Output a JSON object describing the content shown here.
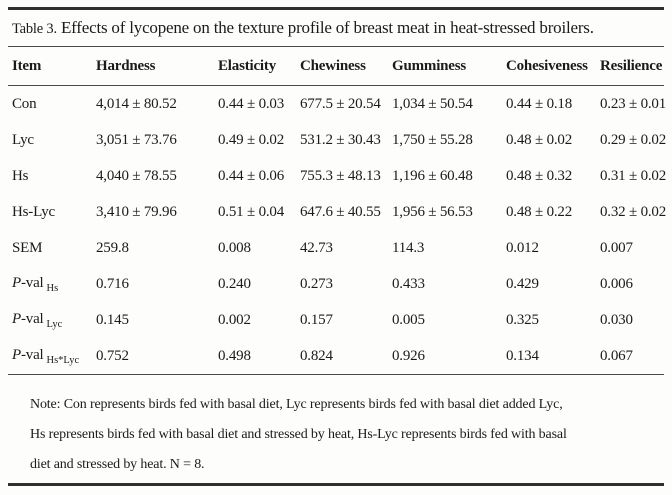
{
  "caption": {
    "label": "Table 3.",
    "text": " Effects of lycopene on the texture profile of breast meat in heat-stressed broilers."
  },
  "table": {
    "columns": [
      "Item",
      "Hardness",
      "Elasticity",
      "Chewiness",
      "Gumminess",
      "Cohesiveness",
      "Resilience"
    ],
    "rows": [
      {
        "item": "Con",
        "cells": [
          "4,014 ± 80.52",
          "0.44 ± 0.03",
          "677.5 ± 20.54",
          "1,034 ± 50.54",
          "0.44 ± 0.18",
          "0.23 ± 0.01"
        ]
      },
      {
        "item": "Lyc",
        "cells": [
          "3,051 ± 73.76",
          "0.49 ± 0.02",
          "531.2 ± 30.43",
          "1,750 ± 55.28",
          "0.48 ± 0.02",
          "0.29 ± 0.02"
        ]
      },
      {
        "item": "Hs",
        "cells": [
          "4,040 ± 78.55",
          "0.44 ± 0.06",
          "755.3 ± 48.13",
          "1,196 ± 60.48",
          "0.48 ± 0.32",
          "0.31 ± 0.02"
        ]
      },
      {
        "item": "Hs-Lyc",
        "cells": [
          "3,410 ± 79.96",
          "0.51 ± 0.04",
          "647.6 ± 40.55",
          "1,956 ± 56.53",
          "0.48 ± 0.22",
          "0.32 ± 0.02"
        ]
      },
      {
        "item": "SEM",
        "cells": [
          "259.8",
          "0.008",
          "42.73",
          "114.3",
          "0.012",
          "0.007"
        ]
      },
      {
        "item_p": "P",
        "item_rest": "-val",
        "item_sub": "Hs",
        "cells": [
          "0.716",
          "0.240",
          "0.273",
          "0.433",
          "0.429",
          "0.006"
        ]
      },
      {
        "item_p": "P",
        "item_rest": "-val",
        "item_sub": "Lyc",
        "cells": [
          "0.145",
          "0.002",
          "0.157",
          "0.005",
          "0.325",
          "0.030"
        ]
      },
      {
        "item_p": "P",
        "item_rest": "-val",
        "item_sub": "Hs*Lyc",
        "cells": [
          "0.752",
          "0.498",
          "0.824",
          "0.926",
          "0.134",
          "0.067"
        ]
      }
    ]
  },
  "note": {
    "line1": "Note: Con represents birds fed with basal diet, Lyc represents birds fed with basal diet added Lyc,",
    "line2": "Hs represents birds fed with basal diet and stressed by heat, Hs-Lyc represents birds fed with basal",
    "line3": "diet and stressed by heat. N = 8."
  }
}
